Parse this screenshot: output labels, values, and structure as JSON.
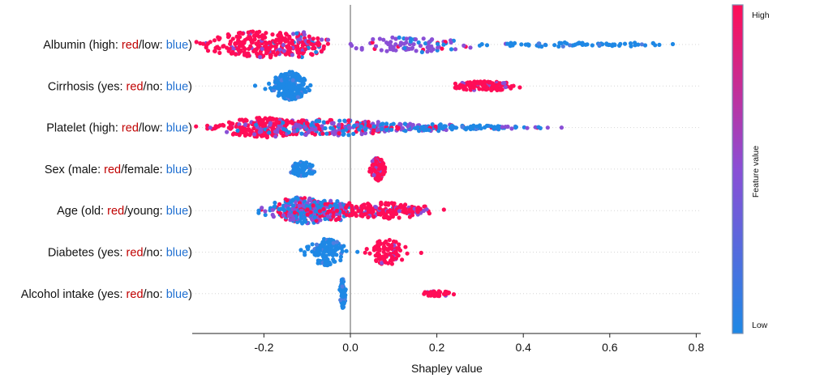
{
  "chart_data": {
    "type": "scatter",
    "subtype": "shap-beeswarm",
    "xlabel": "Shapley value",
    "xlim": [
      -0.36,
      0.81
    ],
    "xticks": [
      -0.2,
      0.0,
      0.2,
      0.4,
      0.6,
      0.8
    ],
    "xtick_labels": [
      "-0.2",
      "0.0",
      "0.2",
      "0.4",
      "0.6",
      "0.8"
    ],
    "colors": {
      "high": "#ff0d57",
      "mid": "#8a4fd6",
      "low": "#1e88e5",
      "red_text": "#c00000",
      "blue_text": "#1f6fd1",
      "zero_line": "#999999"
    },
    "colorbar": {
      "title": "Feature value",
      "high_label": "High",
      "low_label": "Low"
    },
    "features": [
      {
        "name": "Albumin",
        "label": {
          "prefix": "Albumin (high: ",
          "red": "red",
          "mid": "/low: ",
          "blue": "blue",
          "suffix": ")"
        },
        "clusters": [
          {
            "center": -0.21,
            "spread": 0.06,
            "n": 230,
            "width": 0.75,
            "color": "high"
          },
          {
            "center": -0.11,
            "spread": 0.025,
            "n": 90,
            "width": 0.75,
            "color": "mixed_high"
          },
          {
            "center": 0.13,
            "spread": 0.07,
            "n": 90,
            "width": 0.45,
            "color": "mid"
          },
          {
            "center": 0.47,
            "spread": 0.1,
            "n": 55,
            "width": 0.12,
            "color": "low"
          },
          {
            "center": 0.65,
            "spread": 0.05,
            "n": 18,
            "width": 0.1,
            "color": "low"
          }
        ]
      },
      {
        "name": "Cirrhosis",
        "label": {
          "prefix": "Cirrhosis (yes: ",
          "red": "red",
          "mid": "/no: ",
          "blue": "blue",
          "suffix": ")"
        },
        "clusters": [
          {
            "center": -0.14,
            "spread": 0.02,
            "n": 220,
            "width": 0.8,
            "color": "low"
          },
          {
            "center": 0.31,
            "spread": 0.035,
            "n": 120,
            "width": 0.28,
            "color": "high"
          }
        ]
      },
      {
        "name": "Platelet",
        "label": {
          "prefix": "Platelet (high: ",
          "red": "red",
          "mid": "/low: ",
          "blue": "blue",
          "suffix": ")"
        },
        "clusters": [
          {
            "center": -0.2,
            "spread": 0.05,
            "n": 210,
            "width": 0.55,
            "color": "high"
          },
          {
            "center": -0.06,
            "spread": 0.09,
            "n": 200,
            "width": 0.45,
            "color": "mixed"
          },
          {
            "center": 0.12,
            "spread": 0.09,
            "n": 110,
            "width": 0.22,
            "color": "mixed_low"
          },
          {
            "center": 0.29,
            "spread": 0.06,
            "n": 40,
            "width": 0.12,
            "color": "low"
          },
          {
            "center": 0.41,
            "spread": 0.03,
            "n": 10,
            "width": 0.08,
            "color": "mid"
          }
        ]
      },
      {
        "name": "Sex",
        "label": {
          "prefix": "Sex (male: ",
          "red": "red",
          "mid": "/female: ",
          "blue": "blue",
          "suffix": ")"
        },
        "clusters": [
          {
            "center": -0.11,
            "spread": 0.015,
            "n": 80,
            "width": 0.4,
            "color": "low"
          },
          {
            "center": 0.063,
            "spread": 0.008,
            "n": 110,
            "width": 0.65,
            "color": "high"
          }
        ]
      },
      {
        "name": "Age",
        "label": {
          "prefix": "Age (old: ",
          "red": "red",
          "mid": "/young: ",
          "blue": "blue",
          "suffix": ")"
        },
        "clusters": [
          {
            "center": -0.11,
            "spread": 0.04,
            "n": 190,
            "width": 0.75,
            "color": "mixed_low"
          },
          {
            "center": -0.05,
            "spread": 0.06,
            "n": 150,
            "width": 0.55,
            "color": "mixed"
          },
          {
            "center": 0.08,
            "spread": 0.05,
            "n": 140,
            "width": 0.45,
            "color": "high"
          },
          {
            "center": 0.15,
            "spread": 0.02,
            "n": 20,
            "width": 0.12,
            "color": "high"
          }
        ]
      },
      {
        "name": "Diabetes",
        "label": {
          "prefix": "Diabetes (yes: ",
          "red": "red",
          "mid": "/no: ",
          "blue": "blue",
          "suffix": ")"
        },
        "clusters": [
          {
            "center": -0.055,
            "spread": 0.02,
            "n": 120,
            "width": 0.75,
            "color": "low"
          },
          {
            "center": 0.085,
            "spread": 0.022,
            "n": 95,
            "width": 0.7,
            "color": "high"
          }
        ]
      },
      {
        "name": "Alcohol intake",
        "label": {
          "prefix": "Alcohol intake (yes: ",
          "red": "red",
          "mid": "/no: ",
          "blue": "blue",
          "suffix": ")"
        },
        "clusters": [
          {
            "center": -0.018,
            "spread": 0.003,
            "n": 60,
            "width": 0.85,
            "color": "low"
          },
          {
            "center": 0.2,
            "spread": 0.018,
            "n": 45,
            "width": 0.14,
            "color": "high"
          }
        ]
      }
    ]
  }
}
